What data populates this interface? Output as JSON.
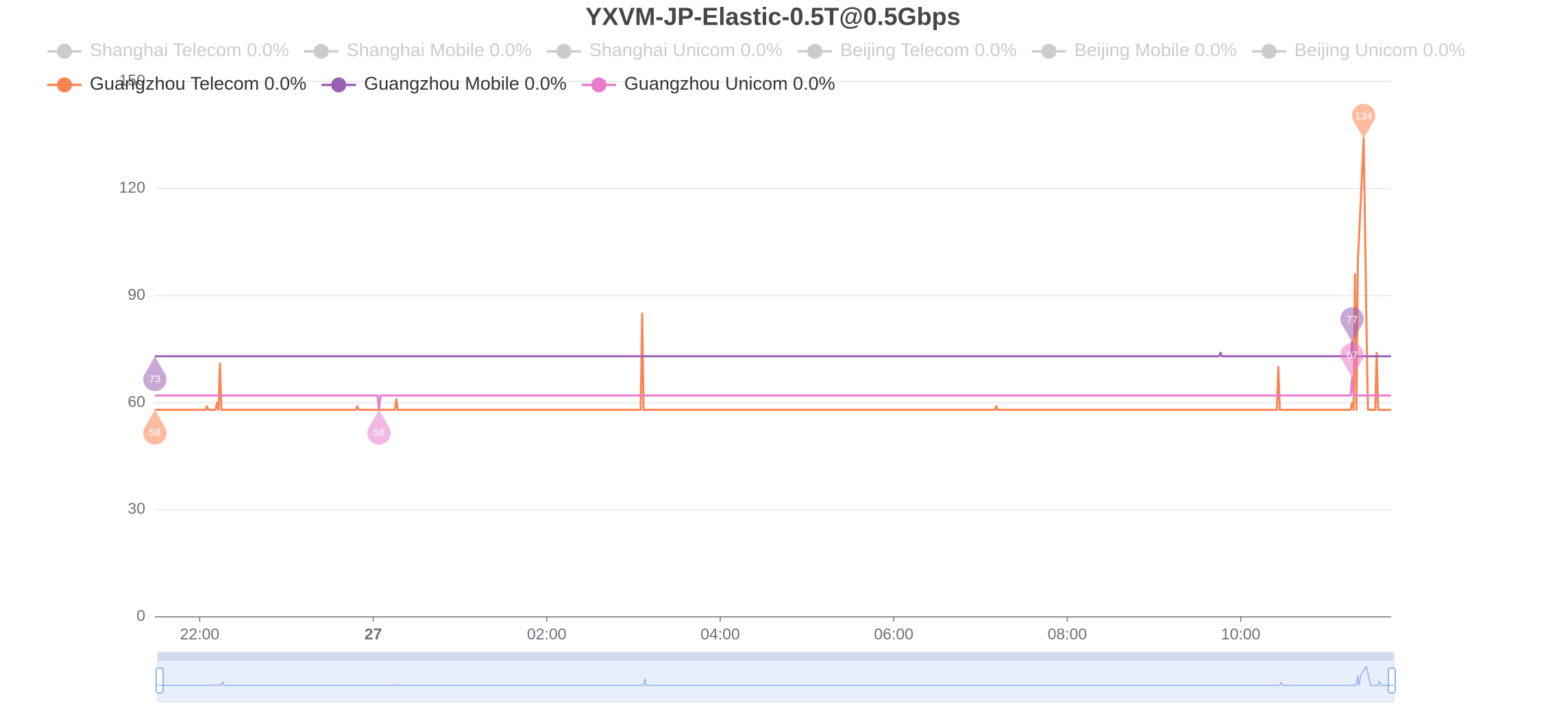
{
  "chart_data": {
    "type": "line",
    "title": "YXVM-JP-Elastic-0.5T@0.5Gbps",
    "x": [
      "21:29",
      "22:04",
      "22:05",
      "22:06",
      "22:11",
      "22:12",
      "22:13",
      "22:14",
      "22:15",
      "23:48",
      "23:49",
      "23:50",
      "00:03",
      "00:04",
      "00:05",
      "00:15",
      "00:16",
      "00:17",
      "03:05",
      "03:06",
      "03:07",
      "07:10",
      "07:11",
      "07:12",
      "09:45",
      "09:46",
      "09:47",
      "10:25",
      "10:26",
      "10:27",
      "11:16",
      "11:17",
      "11:18",
      "11:19",
      "11:20",
      "11:21",
      "11:22",
      "11:25",
      "11:26",
      "11:27",
      "11:28",
      "11:29",
      "11:33",
      "11:34",
      "11:35",
      "11:44"
    ],
    "xlim": [
      "21:29",
      "11:44"
    ],
    "xticks": [
      "22:00",
      {
        "value": "00:00",
        "label": "27"
      },
      "02:00",
      "04:00",
      "06:00",
      "08:00",
      "10:00"
    ],
    "ylim": [
      0,
      150
    ],
    "yticks": [
      0,
      30,
      60,
      90,
      120,
      150
    ],
    "grid": true,
    "series": [
      {
        "name": "Shanghai Telecom 0.0%",
        "color": "#5470c6",
        "selected": false,
        "values": [
          null,
          null,
          null,
          null,
          null,
          null,
          null,
          null,
          null,
          null,
          null,
          null,
          null,
          null,
          null,
          null,
          null,
          null,
          null,
          null,
          null,
          null,
          null,
          null,
          null,
          null,
          null,
          null,
          null,
          null,
          null,
          null,
          null,
          null,
          null,
          null,
          null,
          null,
          null,
          null,
          null,
          null,
          null,
          null,
          null,
          null
        ]
      },
      {
        "name": "Shanghai Mobile 0.0%",
        "color": "#91cc75",
        "selected": false,
        "values": [
          null,
          null,
          null,
          null,
          null,
          null,
          null,
          null,
          null,
          null,
          null,
          null,
          null,
          null,
          null,
          null,
          null,
          null,
          null,
          null,
          null,
          null,
          null,
          null,
          null,
          null,
          null,
          null,
          null,
          null,
          null,
          null,
          null,
          null,
          null,
          null,
          null,
          null,
          null,
          null,
          null,
          null,
          null,
          null,
          null,
          null
        ]
      },
      {
        "name": "Shanghai Unicom 0.0%",
        "color": "#fac858",
        "selected": false,
        "values": [
          null,
          null,
          null,
          null,
          null,
          null,
          null,
          null,
          null,
          null,
          null,
          null,
          null,
          null,
          null,
          null,
          null,
          null,
          null,
          null,
          null,
          null,
          null,
          null,
          null,
          null,
          null,
          null,
          null,
          null,
          null,
          null,
          null,
          null,
          null,
          null,
          null,
          null,
          null,
          null,
          null,
          null,
          null,
          null,
          null,
          null
        ]
      },
      {
        "name": "Beijing Telecom 0.0%",
        "color": "#ee6666",
        "selected": false,
        "values": [
          null,
          null,
          null,
          null,
          null,
          null,
          null,
          null,
          null,
          null,
          null,
          null,
          null,
          null,
          null,
          null,
          null,
          null,
          null,
          null,
          null,
          null,
          null,
          null,
          null,
          null,
          null,
          null,
          null,
          null,
          null,
          null,
          null,
          null,
          null,
          null,
          null,
          null,
          null,
          null,
          null,
          null,
          null,
          null,
          null,
          null
        ]
      },
      {
        "name": "Beijing Mobile 0.0%",
        "color": "#73c0de",
        "selected": false,
        "values": [
          null,
          null,
          null,
          null,
          null,
          null,
          null,
          null,
          null,
          null,
          null,
          null,
          null,
          null,
          null,
          null,
          null,
          null,
          null,
          null,
          null,
          null,
          null,
          null,
          null,
          null,
          null,
          null,
          null,
          null,
          null,
          null,
          null,
          null,
          null,
          null,
          null,
          null,
          null,
          null,
          null,
          null,
          null,
          null,
          null,
          null
        ]
      },
      {
        "name": "Beijing Unicom 0.0%",
        "color": "#3ba272",
        "selected": false,
        "values": [
          null,
          null,
          null,
          null,
          null,
          null,
          null,
          null,
          null,
          null,
          null,
          null,
          null,
          null,
          null,
          null,
          null,
          null,
          null,
          null,
          null,
          null,
          null,
          null,
          null,
          null,
          null,
          null,
          null,
          null,
          null,
          null,
          null,
          null,
          null,
          null,
          null,
          null,
          null,
          null,
          null,
          null,
          null,
          null,
          null,
          null
        ]
      },
      {
        "name": "Guangzhou Telecom 0.0%",
        "color": "#fc8452",
        "selected": true,
        "values": [
          58,
          58,
          59,
          58,
          58,
          60,
          58,
          71,
          58,
          58,
          59,
          58,
          58,
          58,
          58,
          58,
          61,
          58,
          58,
          85,
          58,
          58,
          59,
          58,
          58,
          58,
          58,
          58,
          70,
          58,
          58,
          60,
          58,
          96,
          58,
          100,
          108,
          134,
          108,
          80,
          58,
          58,
          58,
          74,
          58,
          58
        ]
      },
      {
        "name": "Guangzhou Mobile 0.0%",
        "color": "#9a60b4",
        "selected": true,
        "values": [
          73,
          73,
          73,
          73,
          73,
          73,
          73,
          73,
          73,
          73,
          73,
          73,
          73,
          73,
          73,
          73,
          73,
          73,
          73,
          73,
          73,
          73,
          73,
          73,
          73,
          74,
          73,
          73,
          73,
          73,
          73,
          77,
          73,
          73,
          73,
          73,
          73,
          73,
          73,
          73,
          73,
          73,
          73,
          73,
          73,
          73
        ]
      },
      {
        "name": "Guangzhou Unicom 0.0%",
        "color": "#ea7ccc",
        "selected": true,
        "values": [
          62,
          62,
          62,
          62,
          62,
          62,
          62,
          62,
          62,
          62,
          62,
          62,
          62,
          58,
          62,
          62,
          62,
          62,
          62,
          62,
          62,
          62,
          62,
          62,
          62,
          62,
          62,
          62,
          62,
          62,
          62,
          67,
          62,
          62,
          62,
          62,
          62,
          62,
          62,
          62,
          62,
          62,
          62,
          62,
          62,
          62
        ]
      }
    ]
  }
}
